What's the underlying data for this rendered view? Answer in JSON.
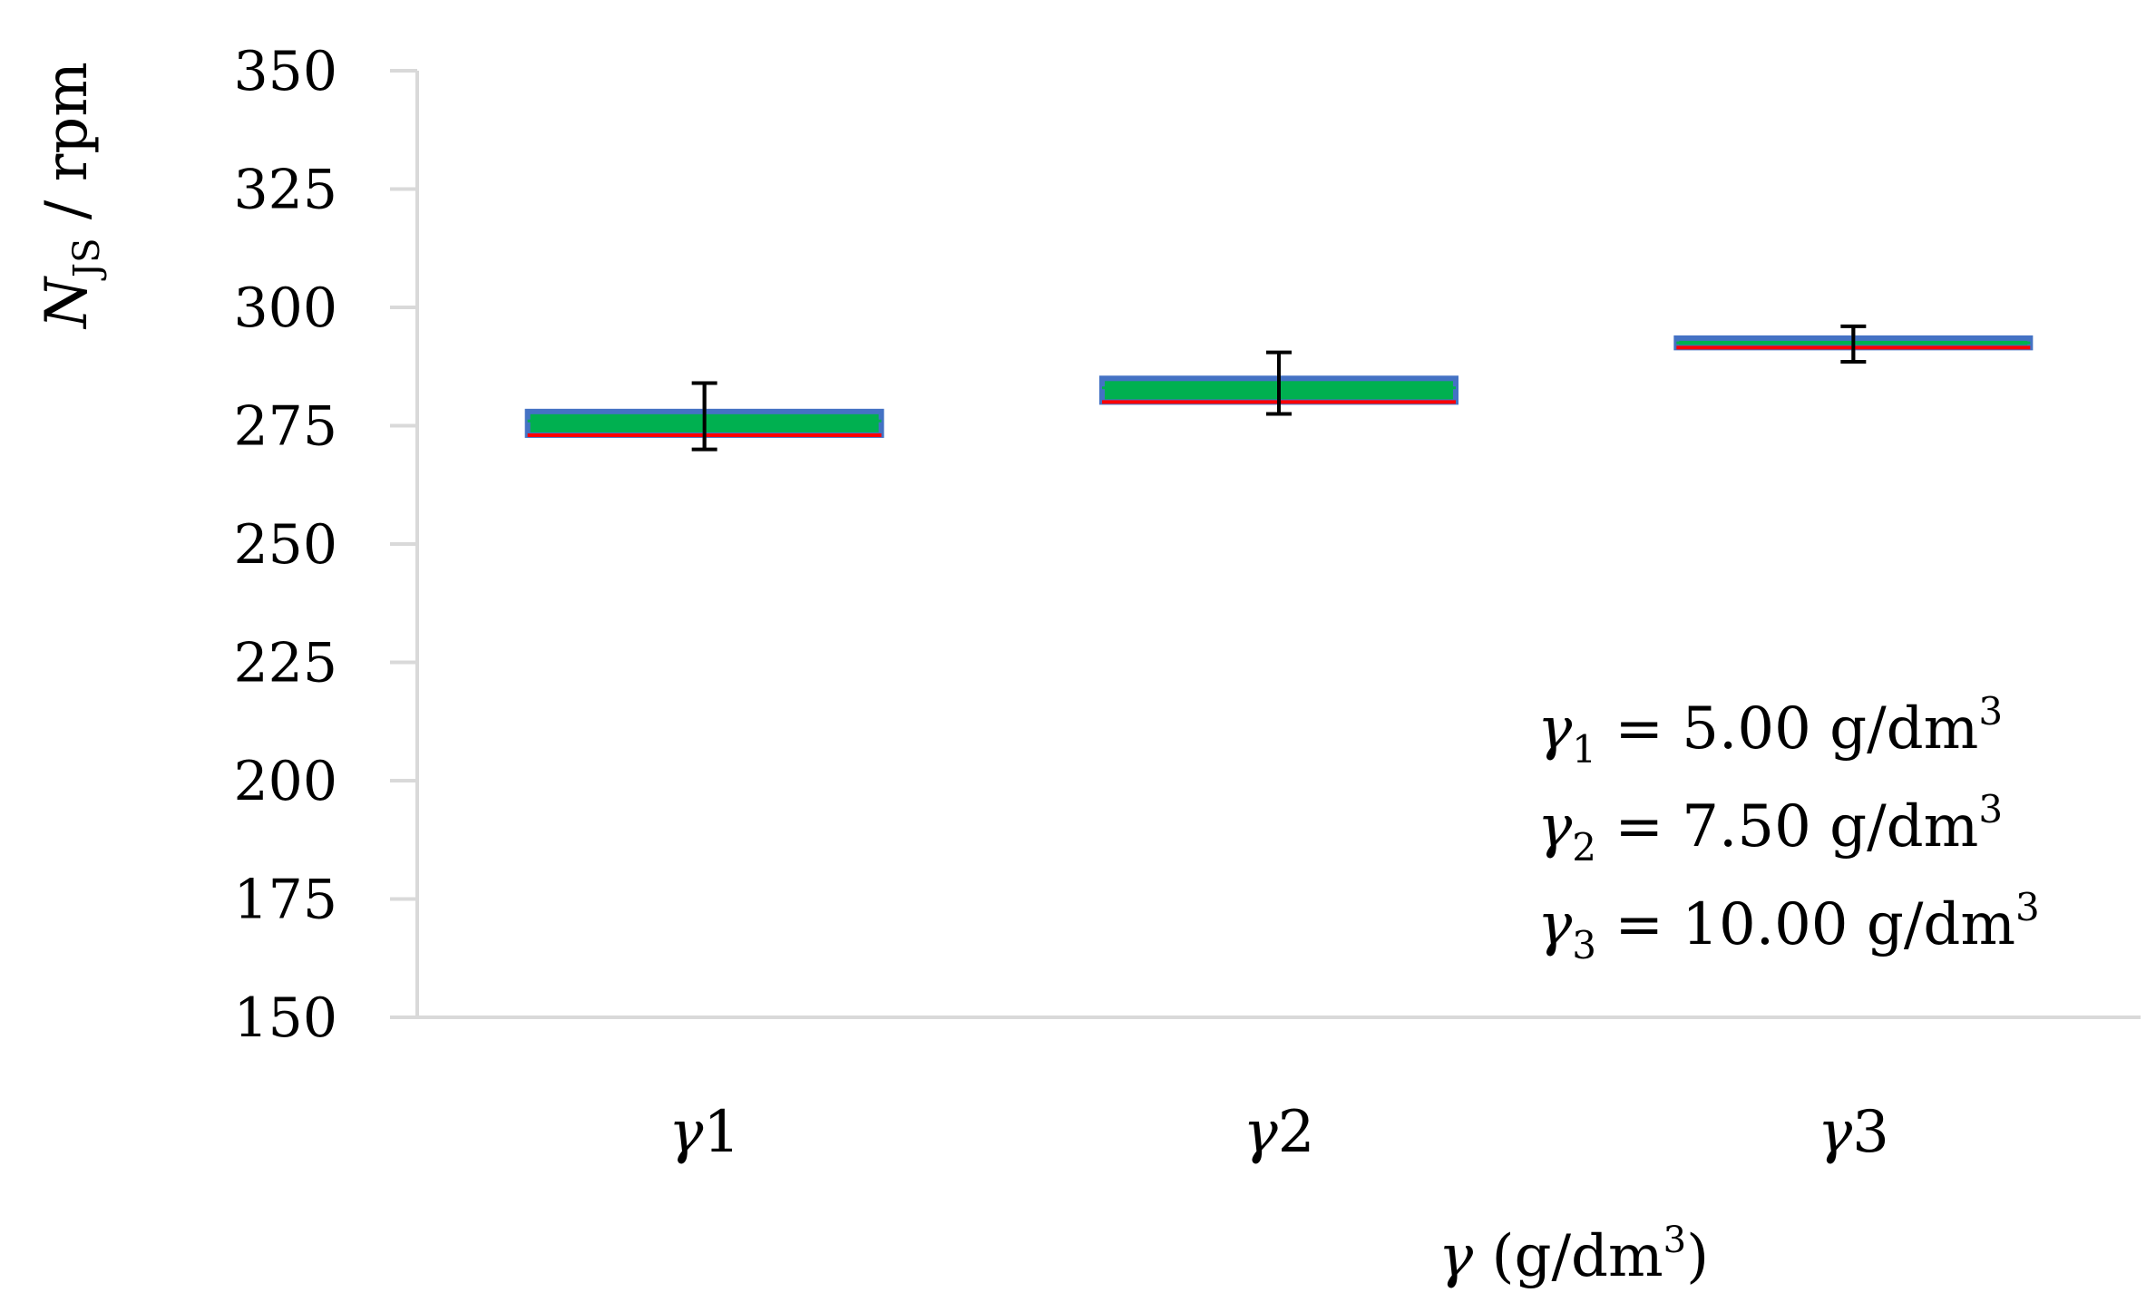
{
  "chart_data": {
    "type": "box",
    "title": "",
    "xlabel": {
      "symbol": "γ",
      "unit_open": " (g/dm",
      "unit_sup": "3",
      "unit_close": ")"
    },
    "ylabel": {
      "symbol": "N",
      "subscript": "JS",
      "rest": " / rpm"
    },
    "ylim": [
      150,
      350
    ],
    "yticks": [
      "150",
      "175",
      "200",
      "225",
      "250",
      "275",
      "300",
      "325",
      "350"
    ],
    "grid": false,
    "legend": "none",
    "categories": [
      "γ1",
      "γ2",
      "γ3"
    ],
    "boxes": [
      {
        "category": "γ1",
        "q1": 273,
        "median": 276,
        "q3": 278,
        "whisker_low": 270,
        "whisker_high": 284
      },
      {
        "category": "γ2",
        "q1": 280,
        "median": 283,
        "q3": 285,
        "whisker_low": 277.5,
        "whisker_high": 290.5
      },
      {
        "category": "γ3",
        "q1": 291.5,
        "median": 292.5,
        "q3": 293.5,
        "whisker_low": 288.5,
        "whisker_high": 296
      }
    ],
    "annotations": [
      {
        "symbol": "γ",
        "sub": "1",
        "value": " = 5.00 g/dm",
        "sup": "3"
      },
      {
        "symbol": "γ",
        "sub": "2",
        "value": " = 7.50 g/dm",
        "sup": "3"
      },
      {
        "symbol": "γ",
        "sub": "3",
        "value": " = 10.00 g/dm",
        "sup": "3"
      }
    ],
    "colors": {
      "box_fill": "#00b050",
      "box_edge": "#4472c4",
      "lower_edge": "#ff0000",
      "whisker": "#000000",
      "axis": "#d9d9d9"
    }
  }
}
